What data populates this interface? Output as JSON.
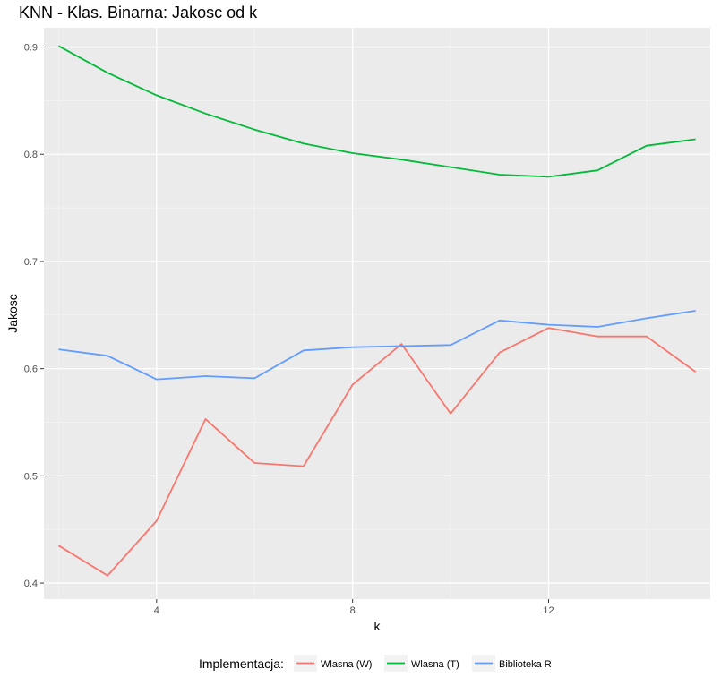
{
  "chart_data": {
    "type": "line",
    "title": "KNN - Klas. Binarna: Jakosc od k",
    "xlabel": "k",
    "ylabel": "Jakosc",
    "x": [
      2,
      3,
      4,
      5,
      6,
      7,
      8,
      9,
      10,
      11,
      12,
      13,
      14,
      15
    ],
    "xlim": [
      1.7,
      15.3
    ],
    "ylim": [
      0.385,
      0.918
    ],
    "x_ticks": [
      4,
      8,
      12
    ],
    "x_tick_labels": [
      "4",
      "8",
      "12"
    ],
    "y_ticks": [
      0.4,
      0.5,
      0.6,
      0.7,
      0.8,
      0.9
    ],
    "y_tick_labels": [
      "0.4",
      "0.5",
      "0.6",
      "0.7",
      "0.8",
      "0.9"
    ],
    "grid": true,
    "legend_title": "Implementacja:",
    "legend_position": "bottom",
    "series": [
      {
        "name": "Wlasna (W)",
        "color": "#F8766D",
        "values": [
          0.435,
          0.407,
          0.458,
          0.553,
          0.512,
          0.509,
          0.585,
          0.623,
          0.558,
          0.615,
          0.638,
          0.63,
          0.63,
          0.597
        ]
      },
      {
        "name": "Wlasna (T)",
        "color": "#00BA38",
        "values": [
          0.901,
          0.876,
          0.855,
          0.838,
          0.823,
          0.81,
          0.801,
          0.795,
          0.788,
          0.781,
          0.779,
          0.785,
          0.808,
          0.814
        ]
      },
      {
        "name": "Biblioteka R",
        "color": "#619CFF",
        "values": [
          0.618,
          0.612,
          0.59,
          0.593,
          0.591,
          0.617,
          0.62,
          0.621,
          0.622,
          0.645,
          0.641,
          0.639,
          0.647,
          0.654
        ]
      }
    ]
  }
}
